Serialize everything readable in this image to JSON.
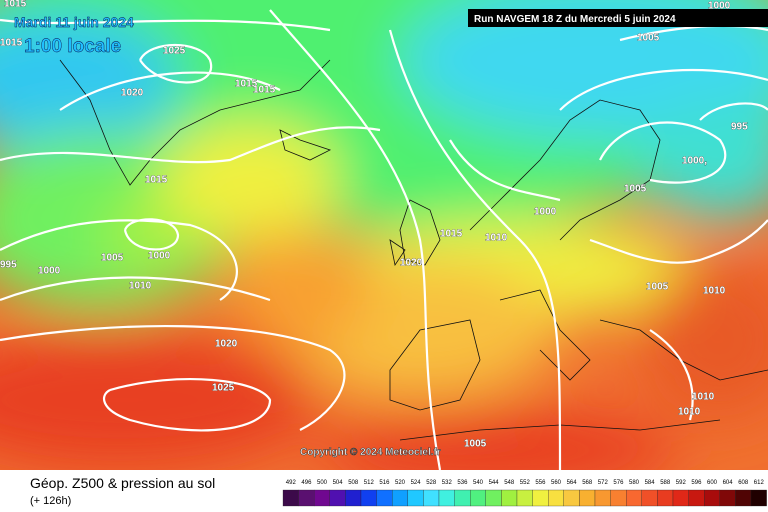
{
  "header": {
    "date": "Mardi 11 juin 2024",
    "local_time": "1:00 locale",
    "run": "Run NAVGEM 18 Z du Mercredi 5 juin 2024"
  },
  "isobar_labels": [
    "1015",
    "1015",
    "1025",
    "1020",
    "1015",
    "1015",
    "1015",
    "1005",
    "1000",
    "995",
    "1000",
    "1010",
    "1020",
    "1025",
    "1015",
    "1010",
    "1020",
    "1000",
    "1005",
    "1000,",
    "995",
    "1005",
    "1000",
    "1005",
    "1010",
    "1010",
    "1010",
    "1005"
  ],
  "copyright": "Copyright © 2024 Meteociel.fr",
  "footer": {
    "title": "Géop. Z500 & pression au sol",
    "lead": "(+ 126h)"
  },
  "legend": {
    "values": [
      492,
      496,
      500,
      504,
      508,
      512,
      516,
      520,
      524,
      528,
      532,
      536,
      540,
      544,
      548,
      552,
      556,
      560,
      564,
      568,
      572,
      576,
      580,
      584,
      588,
      592,
      596,
      600,
      604,
      608,
      612
    ],
    "colors": [
      "#3c0a4a",
      "#5a1070",
      "#700890",
      "#5010b0",
      "#2020d0",
      "#1040f0",
      "#1070ff",
      "#10a0ff",
      "#20c8ff",
      "#40e0ff",
      "#40f0e0",
      "#40f0b0",
      "#50f080",
      "#70f060",
      "#a0f040",
      "#c8f040",
      "#f0f040",
      "#f8e040",
      "#f8c840",
      "#f8b030",
      "#f89830",
      "#f88030",
      "#f86830",
      "#f05028",
      "#e83c20",
      "#e02818",
      "#c81810",
      "#a80c0c",
      "#800808",
      "#500404",
      "#200000"
    ]
  }
}
